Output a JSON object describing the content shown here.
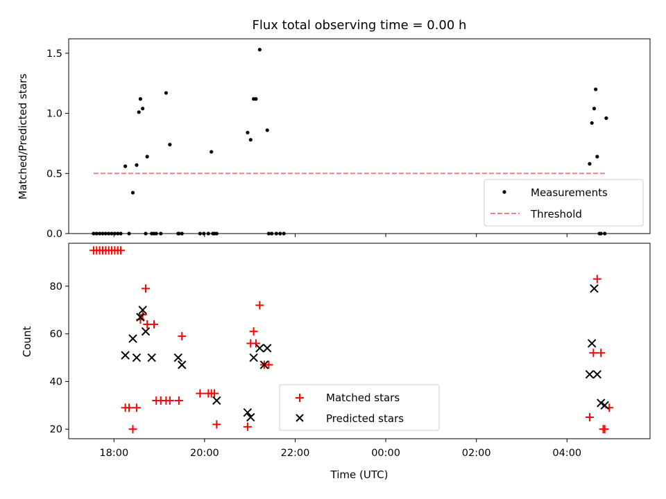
{
  "chart_data": [
    {
      "type": "scatter",
      "title": "Flux total observing time = 0.00 h",
      "xlabel": "",
      "ylabel": "Matched/Predicted stars",
      "xlim": [
        "17:00",
        "05:50"
      ],
      "ylim": [
        0,
        1.62
      ],
      "yticks": [
        "0.0",
        "0.5",
        "1.0",
        "1.5"
      ],
      "ytick_values": [
        0,
        0.5,
        1.0,
        1.5
      ],
      "legend_placement": "lower right",
      "grid": false,
      "series": [
        {
          "name": "Measurements",
          "kind": "points",
          "color": "#000000",
          "x": [
            "17:33",
            "17:37",
            "17:41",
            "17:45",
            "17:49",
            "17:53",
            "17:57",
            "18:01",
            "18:05",
            "18:09",
            "18:15",
            "18:20",
            "18:25",
            "18:30",
            "18:33",
            "18:35",
            "18:38",
            "18:42",
            "18:44",
            "18:50",
            "18:53",
            "18:56",
            "19:02",
            "19:09",
            "19:14",
            "19:25",
            "19:26",
            "19:30",
            "19:54",
            "19:59",
            "20:05",
            "20:09",
            "20:11",
            "20:13",
            "20:16",
            "20:57",
            "21:01",
            "21:05",
            "21:08",
            "21:13",
            "21:23",
            "21:25",
            "21:29",
            "21:35",
            "21:40",
            "21:45",
            "04:30",
            "04:33",
            "04:36",
            "04:38",
            "04:40",
            "04:43",
            "04:45",
            "04:50",
            "04:52"
          ],
          "y": [
            0,
            0,
            0,
            0,
            0,
            0,
            0,
            0,
            0,
            0,
            0.56,
            0,
            0.34,
            0.57,
            1.01,
            1.12,
            1.04,
            0,
            0.64,
            0,
            0,
            0,
            0,
            1.17,
            0.74,
            0,
            0,
            0,
            0,
            0,
            0,
            0.68,
            0,
            0,
            0,
            0.84,
            0.78,
            1.12,
            1.12,
            1.53,
            0.86,
            0,
            0,
            0,
            0,
            0,
            0.58,
            0.92,
            1.04,
            1.2,
            0.64,
            0,
            0,
            0,
            0.96
          ]
        },
        {
          "name": "Threshold",
          "kind": "line",
          "color": "#f08080",
          "dash": "dashed",
          "x": [
            "17:33",
            "04:52"
          ],
          "y": [
            0.5,
            0.5
          ]
        }
      ]
    },
    {
      "type": "scatter",
      "title": "",
      "xlabel": "Time (UTC)",
      "ylabel": "Count",
      "xlim": [
        "17:00",
        "05:50"
      ],
      "ylim": [
        16,
        98
      ],
      "xticks": [
        "18:00",
        "20:00",
        "22:00",
        "00:00",
        "02:00",
        "04:00"
      ],
      "yticks": [
        "20",
        "40",
        "60",
        "80"
      ],
      "ytick_values": [
        20,
        40,
        60,
        80
      ],
      "legend_placement": "lower center",
      "grid": false,
      "series": [
        {
          "name": "Matched stars",
          "marker": "plus",
          "color": "#ff0000",
          "x": [
            "17:33",
            "17:37",
            "17:41",
            "17:45",
            "17:49",
            "17:53",
            "17:57",
            "18:01",
            "18:05",
            "18:09",
            "18:15",
            "18:20",
            "18:25",
            "18:30",
            "18:35",
            "18:38",
            "18:42",
            "18:44",
            "18:53",
            "18:56",
            "19:02",
            "19:09",
            "19:14",
            "19:26",
            "19:30",
            "19:54",
            "20:05",
            "20:09",
            "20:13",
            "20:16",
            "20:57",
            "21:01",
            "21:05",
            "21:08",
            "21:13",
            "21:19",
            "21:25",
            "04:30",
            "04:35",
            "04:40",
            "04:45",
            "04:48",
            "04:50",
            "04:56"
          ],
          "y": [
            95,
            95,
            95,
            95,
            95,
            95,
            95,
            95,
            95,
            95,
            29,
            29,
            20,
            29,
            66,
            68,
            79,
            64,
            64,
            32,
            32,
            32,
            32,
            32,
            59,
            35,
            35,
            35,
            35,
            22,
            21,
            56,
            61,
            56,
            72,
            47,
            47,
            25,
            52,
            83,
            52,
            20,
            20,
            29
          ]
        },
        {
          "name": "Predicted stars",
          "marker": "cross",
          "color": "#000000",
          "x": [
            "18:15",
            "18:25",
            "18:30",
            "18:35",
            "18:38",
            "18:42",
            "18:50",
            "19:25",
            "19:30",
            "20:16",
            "20:57",
            "21:01",
            "21:05",
            "21:13",
            "21:19",
            "21:23",
            "04:30",
            "04:33",
            "04:36",
            "04:40",
            "04:45",
            "04:50"
          ],
          "y": [
            51,
            58,
            50,
            67,
            70,
            61,
            50,
            50,
            47,
            32,
            27,
            25,
            50,
            54,
            47,
            54,
            43,
            56,
            79,
            43,
            31,
            30
          ]
        }
      ]
    }
  ]
}
